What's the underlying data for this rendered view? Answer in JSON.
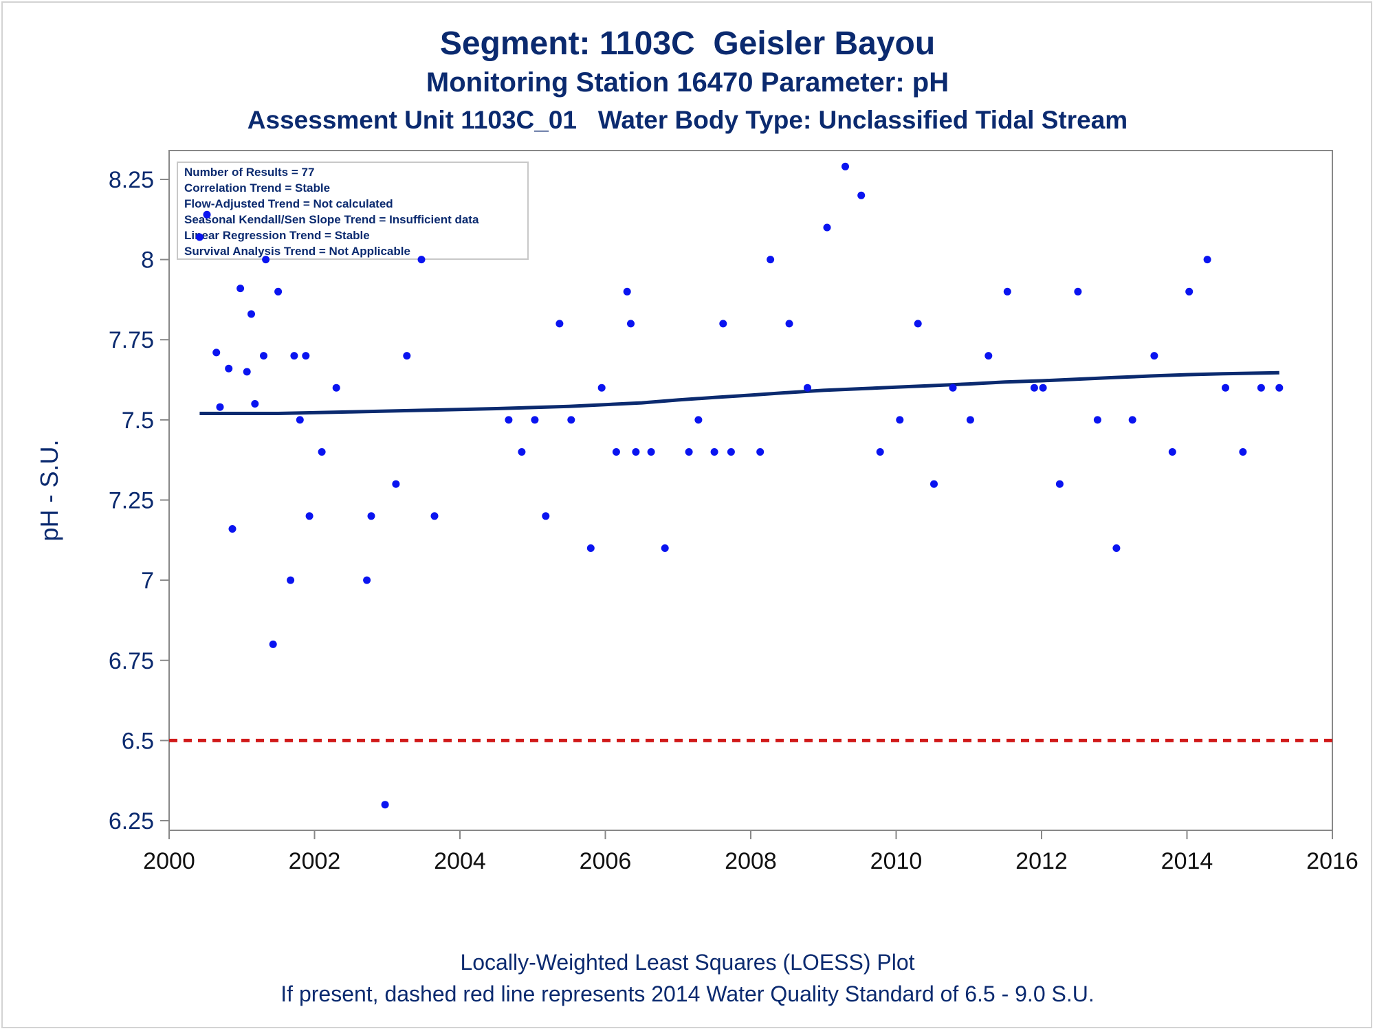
{
  "chart_data": {
    "type": "scatter",
    "title": "Segment: 1103C  Geisler Bayou",
    "subtitle": "Monitoring Station 16470 Parameter: pH",
    "subtitle2": "Assessment Unit 1103C_01   Water Body Type: Unclassified Tidal Stream",
    "ylabel": "pH - S.U.",
    "xlabel": "",
    "xlim": [
      2000,
      2016
    ],
    "ylim": [
      6.22,
      8.34
    ],
    "x_ticks": [
      "2000",
      "2002",
      "2004",
      "2006",
      "2008",
      "2010",
      "2012",
      "2014",
      "2016"
    ],
    "y_ticks": [
      "6.25",
      "6.5",
      "6.75",
      "7",
      "7.25",
      "7.5",
      "7.75",
      "8",
      "8.25"
    ],
    "grid": false,
    "stats_box": [
      "Number of Results = 77",
      "Correlation Trend = Stable",
      "Flow-Adjusted Trend = Not calculated",
      "Seasonal Kendall/Sen Slope Trend = Insufficient data",
      "Linear Regression Trend = Stable",
      "Survival Analysis Trend = Not Applicable"
    ],
    "footnotes": [
      "Locally-Weighted Least Squares (LOESS) Plot",
      "If present, dashed red line represents 2014 Water Quality Standard of 6.5 - 9.0 S.U."
    ],
    "points": [
      [
        2000.42,
        8.07
      ],
      [
        2000.52,
        8.14
      ],
      [
        2000.65,
        7.71
      ],
      [
        2000.7,
        7.54
      ],
      [
        2000.82,
        7.66
      ],
      [
        2000.87,
        7.16
      ],
      [
        2000.98,
        7.91
      ],
      [
        2001.07,
        7.65
      ],
      [
        2001.13,
        7.83
      ],
      [
        2001.18,
        7.55
      ],
      [
        2001.3,
        7.7
      ],
      [
        2001.33,
        8.0
      ],
      [
        2001.43,
        6.8
      ],
      [
        2001.5,
        7.9
      ],
      [
        2001.67,
        7.0
      ],
      [
        2001.72,
        7.7
      ],
      [
        2001.8,
        7.5
      ],
      [
        2001.88,
        7.7
      ],
      [
        2001.93,
        7.2
      ],
      [
        2002.1,
        7.4
      ],
      [
        2002.3,
        7.6
      ],
      [
        2002.72,
        7.0
      ],
      [
        2002.78,
        7.2
      ],
      [
        2002.97,
        6.3
      ],
      [
        2003.12,
        7.3
      ],
      [
        2003.27,
        7.7
      ],
      [
        2003.47,
        8.0
      ],
      [
        2003.65,
        7.2
      ],
      [
        2004.67,
        7.5
      ],
      [
        2004.85,
        7.4
      ],
      [
        2005.03,
        7.5
      ],
      [
        2005.18,
        7.2
      ],
      [
        2005.37,
        7.8
      ],
      [
        2005.53,
        7.5
      ],
      [
        2005.8,
        7.1
      ],
      [
        2005.95,
        7.6
      ],
      [
        2006.15,
        7.4
      ],
      [
        2006.3,
        7.9
      ],
      [
        2006.35,
        7.8
      ],
      [
        2006.42,
        7.4
      ],
      [
        2006.63,
        7.4
      ],
      [
        2006.82,
        7.1
      ],
      [
        2007.15,
        7.4
      ],
      [
        2007.28,
        7.5
      ],
      [
        2007.5,
        7.4
      ],
      [
        2007.62,
        7.8
      ],
      [
        2007.73,
        7.4
      ],
      [
        2008.13,
        7.4
      ],
      [
        2008.27,
        8.0
      ],
      [
        2008.53,
        7.8
      ],
      [
        2008.78,
        7.6
      ],
      [
        2009.05,
        8.1
      ],
      [
        2009.3,
        8.29
      ],
      [
        2009.52,
        8.2
      ],
      [
        2009.78,
        7.4
      ],
      [
        2010.05,
        7.5
      ],
      [
        2010.52,
        7.3
      ],
      [
        2010.3,
        7.8
      ],
      [
        2010.78,
        7.6
      ],
      [
        2011.02,
        7.5
      ],
      [
        2011.27,
        7.7
      ],
      [
        2011.53,
        7.9
      ],
      [
        2011.9,
        7.6
      ],
      [
        2012.02,
        7.6
      ],
      [
        2012.25,
        7.3
      ],
      [
        2012.5,
        7.9
      ],
      [
        2012.77,
        7.5
      ],
      [
        2013.03,
        7.1
      ],
      [
        2013.25,
        7.5
      ],
      [
        2013.55,
        7.7
      ],
      [
        2013.8,
        7.4
      ],
      [
        2014.03,
        7.9
      ],
      [
        2014.28,
        8.0
      ],
      [
        2014.53,
        7.6
      ],
      [
        2014.77,
        7.4
      ],
      [
        2015.02,
        7.6
      ],
      [
        2015.27,
        7.6
      ]
    ],
    "series": [
      {
        "type": "loess",
        "values": [
          [
            2000.42,
            7.52
          ],
          [
            2001.5,
            7.52
          ],
          [
            2002.5,
            7.525
          ],
          [
            2003.5,
            7.53
          ],
          [
            2004.5,
            7.535
          ],
          [
            2005.5,
            7.542
          ],
          [
            2006.5,
            7.553
          ],
          [
            2007.0,
            7.562
          ],
          [
            2007.5,
            7.57
          ],
          [
            2008.0,
            7.577
          ],
          [
            2008.5,
            7.585
          ],
          [
            2009.0,
            7.592
          ],
          [
            2009.5,
            7.597
          ],
          [
            2010.0,
            7.602
          ],
          [
            2010.5,
            7.607
          ],
          [
            2011.0,
            7.612
          ],
          [
            2011.5,
            7.618
          ],
          [
            2012.0,
            7.622
          ],
          [
            2012.5,
            7.627
          ],
          [
            2013.0,
            7.632
          ],
          [
            2013.5,
            7.637
          ],
          [
            2014.0,
            7.641
          ],
          [
            2014.5,
            7.644
          ],
          [
            2015.27,
            7.647
          ]
        ]
      }
    ],
    "reference_line": {
      "y": 6.5,
      "style": "dashed",
      "color": "#d11a1a"
    },
    "colors": {
      "text": "#0b2a6f",
      "points": "#0a14f0",
      "loess": "#0b2a6f",
      "axis": "#888888"
    }
  }
}
